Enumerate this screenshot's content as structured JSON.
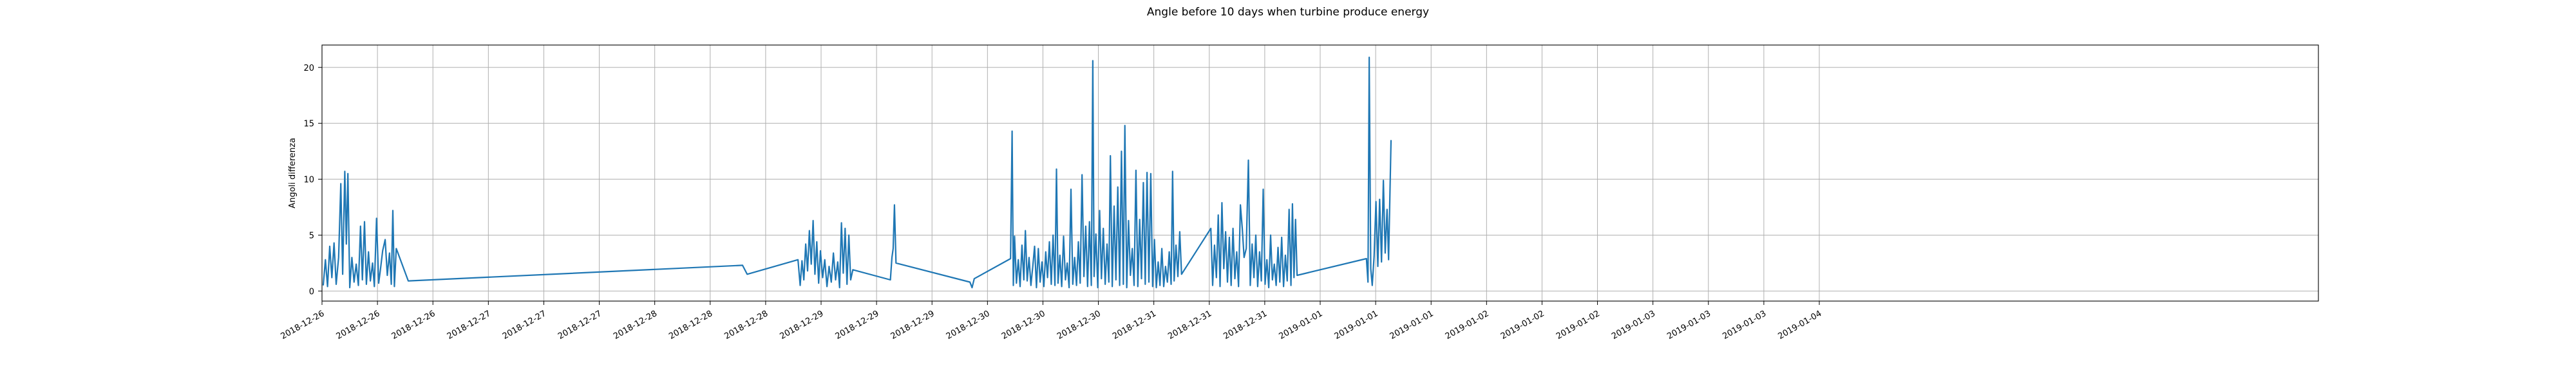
{
  "chart_data": {
    "type": "line",
    "title": "Angle before 10 days when turbine produce energy",
    "xlabel": "",
    "ylabel": "Angoli differenza",
    "grid": true,
    "xlim": [
      "2018-12-26T00:00",
      "2019-01-04T00:00"
    ],
    "ylim": [
      -0.9,
      22.0
    ],
    "yticks": [
      0,
      5,
      10,
      15,
      20
    ],
    "xticks": [
      {
        "t": "2018-12-26T00:00",
        "label": "2018-12-26"
      },
      {
        "t": "2018-12-26T06:00",
        "label": "2018-12-26"
      },
      {
        "t": "2018-12-26T12:00",
        "label": "2018-12-26"
      },
      {
        "t": "2018-12-26T18:00",
        "label": "2018-12-27"
      },
      {
        "t": "2018-12-27T00:00",
        "label": "2018-12-27"
      },
      {
        "t": "2018-12-27T06:00",
        "label": "2018-12-27"
      },
      {
        "t": "2018-12-27T12:00",
        "label": "2018-12-28"
      },
      {
        "t": "2018-12-27T18:00",
        "label": "2018-12-28"
      },
      {
        "t": "2018-12-28T00:00",
        "label": "2018-12-28"
      },
      {
        "t": "2018-12-28T06:00",
        "label": "2018-12-29"
      },
      {
        "t": "2018-12-28T12:00",
        "label": "2018-12-29"
      },
      {
        "t": "2018-12-28T18:00",
        "label": "2018-12-29"
      },
      {
        "t": "2018-12-29T00:00",
        "label": "2018-12-30"
      },
      {
        "t": "2018-12-29T06:00",
        "label": "2018-12-30"
      },
      {
        "t": "2018-12-29T12:00",
        "label": "2018-12-30"
      },
      {
        "t": "2018-12-29T18:00",
        "label": "2018-12-31"
      },
      {
        "t": "2018-12-30T00:00",
        "label": "2018-12-31"
      },
      {
        "t": "2018-12-30T06:00",
        "label": "2018-12-31"
      },
      {
        "t": "2018-12-30T12:00",
        "label": "2019-01-01"
      },
      {
        "t": "2018-12-30T18:00",
        "label": "2019-01-01"
      },
      {
        "t": "2018-12-31T00:00",
        "label": "2019-01-01"
      },
      {
        "t": "2018-12-31T06:00",
        "label": "2019-01-02"
      },
      {
        "t": "2018-12-31T12:00",
        "label": "2019-01-02"
      },
      {
        "t": "2018-12-31T18:00",
        "label": "2019-01-02"
      },
      {
        "t": "2019-01-01T00:00",
        "label": "2019-01-03"
      },
      {
        "t": "2019-01-01T06:00",
        "label": "2019-01-03"
      },
      {
        "t": "2019-01-01T12:00",
        "label": "2019-01-03"
      },
      {
        "t": "2019-01-01T18:00",
        "label": "2019-01-04"
      }
    ],
    "series": [
      {
        "name": "",
        "color": "#1f77b4",
        "points": [
          [
            "2018-12-26T00:08",
            0.5
          ],
          [
            "2018-12-26T00:22",
            2.8
          ],
          [
            "2018-12-26T00:36",
            0.4
          ],
          [
            "2018-12-26T00:50",
            4.0
          ],
          [
            "2018-12-26T01:04",
            1.2
          ],
          [
            "2018-12-26T01:18",
            4.3
          ],
          [
            "2018-12-26T01:32",
            0.6
          ],
          [
            "2018-12-26T01:48",
            3.0
          ],
          [
            "2018-12-26T02:02",
            9.6
          ],
          [
            "2018-12-26T02:14",
            1.5
          ],
          [
            "2018-12-26T02:28",
            10.7
          ],
          [
            "2018-12-26T02:38",
            4.2
          ],
          [
            "2018-12-26T02:48",
            10.5
          ],
          [
            "2018-12-26T03:00",
            0.3
          ],
          [
            "2018-12-26T03:14",
            3.0
          ],
          [
            "2018-12-26T03:28",
            0.8
          ],
          [
            "2018-12-26T03:42",
            2.4
          ],
          [
            "2018-12-26T03:56",
            0.5
          ],
          [
            "2018-12-26T04:10",
            5.8
          ],
          [
            "2018-12-26T04:22",
            1.0
          ],
          [
            "2018-12-26T04:36",
            6.2
          ],
          [
            "2018-12-26T04:48",
            0.6
          ],
          [
            "2018-12-26T05:02",
            3.5
          ],
          [
            "2018-12-26T05:14",
            0.9
          ],
          [
            "2018-12-26T05:28",
            2.5
          ],
          [
            "2018-12-26T05:40",
            0.4
          ],
          [
            "2018-12-26T05:54",
            6.5
          ],
          [
            "2018-12-26T06:08",
            0.7
          ],
          [
            "2018-12-26T06:20",
            2.0
          ],
          [
            "2018-12-26T06:34",
            3.6
          ],
          [
            "2018-12-26T06:50",
            4.6
          ],
          [
            "2018-12-26T07:04",
            1.4
          ],
          [
            "2018-12-26T07:18",
            3.4
          ],
          [
            "2018-12-26T07:30",
            0.6
          ],
          [
            "2018-12-26T07:40",
            7.2
          ],
          [
            "2018-12-26T07:50",
            0.4
          ],
          [
            "2018-12-26T08:02",
            3.8
          ],
          [
            "2018-12-26T09:20",
            0.9
          ],
          [
            "2018-12-27T21:30",
            2.3
          ],
          [
            "2018-12-27T22:00",
            1.5
          ],
          [
            "2018-12-28T03:30",
            2.8
          ],
          [
            "2018-12-28T03:44",
            0.5
          ],
          [
            "2018-12-28T03:56",
            2.7
          ],
          [
            "2018-12-28T04:08",
            1.0
          ],
          [
            "2018-12-28T04:20",
            4.2
          ],
          [
            "2018-12-28T04:32",
            1.8
          ],
          [
            "2018-12-28T04:44",
            5.4
          ],
          [
            "2018-12-28T04:56",
            2.4
          ],
          [
            "2018-12-28T05:08",
            6.3
          ],
          [
            "2018-12-28T05:20",
            1.5
          ],
          [
            "2018-12-28T05:32",
            4.4
          ],
          [
            "2018-12-28T05:44",
            0.7
          ],
          [
            "2018-12-28T05:56",
            3.6
          ],
          [
            "2018-12-28T06:10",
            1.2
          ],
          [
            "2018-12-28T06:24",
            2.8
          ],
          [
            "2018-12-28T06:38",
            0.4
          ],
          [
            "2018-12-28T06:52",
            2.2
          ],
          [
            "2018-12-28T07:06",
            0.8
          ],
          [
            "2018-12-28T07:20",
            3.4
          ],
          [
            "2018-12-28T07:34",
            1.0
          ],
          [
            "2018-12-28T07:48",
            2.6
          ],
          [
            "2018-12-28T08:00",
            0.3
          ],
          [
            "2018-12-28T08:12",
            6.1
          ],
          [
            "2018-12-28T08:24",
            1.6
          ],
          [
            "2018-12-28T08:36",
            5.6
          ],
          [
            "2018-12-28T08:48",
            0.6
          ],
          [
            "2018-12-28T09:00",
            5.0
          ],
          [
            "2018-12-28T09:12",
            1.0
          ],
          [
            "2018-12-28T09:26",
            1.9
          ],
          [
            "2018-12-28T13:30",
            1.0
          ],
          [
            "2018-12-28T13:40",
            3.0
          ],
          [
            "2018-12-28T13:48",
            3.8
          ],
          [
            "2018-12-28T13:56",
            7.7
          ],
          [
            "2018-12-28T14:06",
            2.5
          ],
          [
            "2018-12-28T22:06",
            0.8
          ],
          [
            "2018-12-28T22:20",
            0.3
          ],
          [
            "2018-12-28T22:34",
            1.1
          ],
          [
            "2018-12-29T02:30",
            2.9
          ],
          [
            "2018-12-29T02:40",
            14.3
          ],
          [
            "2018-12-29T02:48",
            0.5
          ],
          [
            "2018-12-29T02:56",
            4.9
          ],
          [
            "2018-12-29T03:08",
            0.7
          ],
          [
            "2018-12-29T03:20",
            2.8
          ],
          [
            "2018-12-29T03:32",
            0.4
          ],
          [
            "2018-12-29T03:44",
            4.1
          ],
          [
            "2018-12-29T03:56",
            1.0
          ],
          [
            "2018-12-29T04:06",
            5.4
          ],
          [
            "2018-12-29T04:18",
            0.9
          ],
          [
            "2018-12-29T04:30",
            3.0
          ],
          [
            "2018-12-29T04:42",
            0.5
          ],
          [
            "2018-12-29T04:54",
            2.2
          ],
          [
            "2018-12-29T05:06",
            4.0
          ],
          [
            "2018-12-29T05:18",
            0.3
          ],
          [
            "2018-12-29T05:30",
            3.8
          ],
          [
            "2018-12-29T05:42",
            0.8
          ],
          [
            "2018-12-29T05:54",
            2.6
          ],
          [
            "2018-12-29T06:06",
            0.4
          ],
          [
            "2018-12-29T06:18",
            3.5
          ],
          [
            "2018-12-29T06:30",
            1.2
          ],
          [
            "2018-12-29T06:42",
            4.4
          ],
          [
            "2018-12-29T06:54",
            0.6
          ],
          [
            "2018-12-29T07:06",
            5.0
          ],
          [
            "2018-12-29T07:18",
            0.5
          ],
          [
            "2018-12-29T07:28",
            10.9
          ],
          [
            "2018-12-29T07:38",
            0.7
          ],
          [
            "2018-12-29T07:50",
            3.2
          ],
          [
            "2018-12-29T08:02",
            0.4
          ],
          [
            "2018-12-29T08:14",
            4.9
          ],
          [
            "2018-12-29T08:26",
            1.0
          ],
          [
            "2018-12-29T08:38",
            2.5
          ],
          [
            "2018-12-29T08:50",
            0.3
          ],
          [
            "2018-12-29T09:02",
            9.1
          ],
          [
            "2018-12-29T09:14",
            0.6
          ],
          [
            "2018-12-29T09:26",
            3.0
          ],
          [
            "2018-12-29T09:38",
            0.5
          ],
          [
            "2018-12-29T09:50",
            4.4
          ],
          [
            "2018-12-29T10:02",
            0.7
          ],
          [
            "2018-12-29T10:14",
            10.4
          ],
          [
            "2018-12-29T10:26",
            1.3
          ],
          [
            "2018-12-29T10:38",
            5.8
          ],
          [
            "2018-12-29T10:50",
            0.4
          ],
          [
            "2018-12-29T11:02",
            6.2
          ],
          [
            "2018-12-29T11:14",
            0.5
          ],
          [
            "2018-12-29T11:24",
            20.6
          ],
          [
            "2018-12-29T11:32",
            1.3
          ],
          [
            "2018-12-29T11:44",
            5.1
          ],
          [
            "2018-12-29T11:56",
            0.3
          ],
          [
            "2018-12-29T12:08",
            7.2
          ],
          [
            "2018-12-29T12:20",
            1.1
          ],
          [
            "2018-12-29T12:32",
            5.6
          ],
          [
            "2018-12-29T12:44",
            0.6
          ],
          [
            "2018-12-29T12:56",
            4.2
          ],
          [
            "2018-12-29T13:08",
            0.8
          ],
          [
            "2018-12-29T13:18",
            12.1
          ],
          [
            "2018-12-29T13:30",
            0.4
          ],
          [
            "2018-12-29T13:42",
            7.6
          ],
          [
            "2018-12-29T13:54",
            1.0
          ],
          [
            "2018-12-29T14:06",
            9.3
          ],
          [
            "2018-12-29T14:18",
            0.5
          ],
          [
            "2018-12-29T14:30",
            12.5
          ],
          [
            "2018-12-29T14:42",
            0.6
          ],
          [
            "2018-12-29T14:52",
            14.8
          ],
          [
            "2018-12-29T15:04",
            0.3
          ],
          [
            "2018-12-29T15:16",
            6.3
          ],
          [
            "2018-12-29T15:28",
            1.4
          ],
          [
            "2018-12-29T15:40",
            3.8
          ],
          [
            "2018-12-29T15:52",
            0.5
          ],
          [
            "2018-12-29T16:04",
            10.8
          ],
          [
            "2018-12-29T16:16",
            0.4
          ],
          [
            "2018-12-29T16:28",
            6.4
          ],
          [
            "2018-12-29T16:40",
            1.1
          ],
          [
            "2018-12-29T16:52",
            9.7
          ],
          [
            "2018-12-29T17:04",
            0.6
          ],
          [
            "2018-12-29T17:16",
            10.6
          ],
          [
            "2018-12-29T17:28",
            0.8
          ],
          [
            "2018-12-29T17:40",
            10.5
          ],
          [
            "2018-12-29T17:52",
            0.4
          ],
          [
            "2018-12-29T18:04",
            4.6
          ],
          [
            "2018-12-29T18:16",
            0.3
          ],
          [
            "2018-12-29T18:28",
            2.6
          ],
          [
            "2018-12-29T18:40",
            0.5
          ],
          [
            "2018-12-29T18:52",
            3.8
          ],
          [
            "2018-12-29T19:04",
            0.4
          ],
          [
            "2018-12-29T19:16",
            2.2
          ],
          [
            "2018-12-29T19:28",
            0.8
          ],
          [
            "2018-12-29T19:40",
            3.5
          ],
          [
            "2018-12-29T19:52",
            0.6
          ],
          [
            "2018-12-29T20:02",
            10.7
          ],
          [
            "2018-12-29T20:12",
            0.9
          ],
          [
            "2018-12-29T20:24",
            4.1
          ],
          [
            "2018-12-29T20:36",
            1.3
          ],
          [
            "2018-12-29T20:48",
            5.3
          ],
          [
            "2018-12-29T21:00",
            1.5
          ],
          [
            "2018-12-30T00:10",
            5.6
          ],
          [
            "2018-12-30T00:22",
            0.5
          ],
          [
            "2018-12-30T00:34",
            4.1
          ],
          [
            "2018-12-30T00:46",
            1.2
          ],
          [
            "2018-12-30T00:58",
            6.8
          ],
          [
            "2018-12-30T01:10",
            0.4
          ],
          [
            "2018-12-30T01:22",
            7.9
          ],
          [
            "2018-12-30T01:34",
            2.0
          ],
          [
            "2018-12-30T01:46",
            5.3
          ],
          [
            "2018-12-30T01:58",
            0.8
          ],
          [
            "2018-12-30T02:10",
            4.8
          ],
          [
            "2018-12-30T02:22",
            0.5
          ],
          [
            "2018-12-30T02:34",
            5.6
          ],
          [
            "2018-12-30T02:46",
            1.1
          ],
          [
            "2018-12-30T02:58",
            3.5
          ],
          [
            "2018-12-30T03:10",
            0.4
          ],
          [
            "2018-12-30T03:22",
            7.7
          ],
          [
            "2018-12-30T03:34",
            5.6
          ],
          [
            "2018-12-30T03:46",
            3.0
          ],
          [
            "2018-12-30T04:00",
            3.8
          ],
          [
            "2018-12-30T04:14",
            11.7
          ],
          [
            "2018-12-30T04:26",
            0.5
          ],
          [
            "2018-12-30T04:38",
            4.2
          ],
          [
            "2018-12-30T04:50",
            1.2
          ],
          [
            "2018-12-30T05:02",
            5.0
          ],
          [
            "2018-12-30T05:14",
            0.4
          ],
          [
            "2018-12-30T05:26",
            3.5
          ],
          [
            "2018-12-30T05:38",
            0.9
          ],
          [
            "2018-12-30T05:50",
            9.1
          ],
          [
            "2018-12-30T06:02",
            0.6
          ],
          [
            "2018-12-30T06:14",
            2.8
          ],
          [
            "2018-12-30T06:26",
            0.3
          ],
          [
            "2018-12-30T06:38",
            5.0
          ],
          [
            "2018-12-30T06:50",
            1.0
          ],
          [
            "2018-12-30T07:02",
            2.4
          ],
          [
            "2018-12-30T07:14",
            0.5
          ],
          [
            "2018-12-30T07:26",
            3.9
          ],
          [
            "2018-12-30T07:38",
            0.8
          ],
          [
            "2018-12-30T07:50",
            4.8
          ],
          [
            "2018-12-30T08:02",
            0.4
          ],
          [
            "2018-12-30T08:14",
            3.2
          ],
          [
            "2018-12-30T08:26",
            0.9
          ],
          [
            "2018-12-30T08:38",
            7.3
          ],
          [
            "2018-12-30T08:50",
            0.5
          ],
          [
            "2018-12-30T09:00",
            7.8
          ],
          [
            "2018-12-30T09:10",
            1.2
          ],
          [
            "2018-12-30T09:20",
            6.4
          ],
          [
            "2018-12-30T09:30",
            1.4
          ],
          [
            "2018-12-30T17:00",
            2.9
          ],
          [
            "2018-12-30T17:10",
            0.8
          ],
          [
            "2018-12-30T17:18",
            20.9
          ],
          [
            "2018-12-30T17:28",
            2.0
          ],
          [
            "2018-12-30T17:38",
            0.5
          ],
          [
            "2018-12-30T17:50",
            3.1
          ],
          [
            "2018-12-30T18:02",
            8.0
          ],
          [
            "2018-12-30T18:14",
            2.2
          ],
          [
            "2018-12-30T18:26",
            8.2
          ],
          [
            "2018-12-30T18:38",
            2.6
          ],
          [
            "2018-12-30T18:50",
            9.9
          ],
          [
            "2018-12-30T19:02",
            3.4
          ],
          [
            "2018-12-30T19:14",
            7.3
          ],
          [
            "2018-12-30T19:24",
            2.8
          ],
          [
            "2018-12-30T19:40",
            13.5
          ]
        ]
      }
    ]
  }
}
